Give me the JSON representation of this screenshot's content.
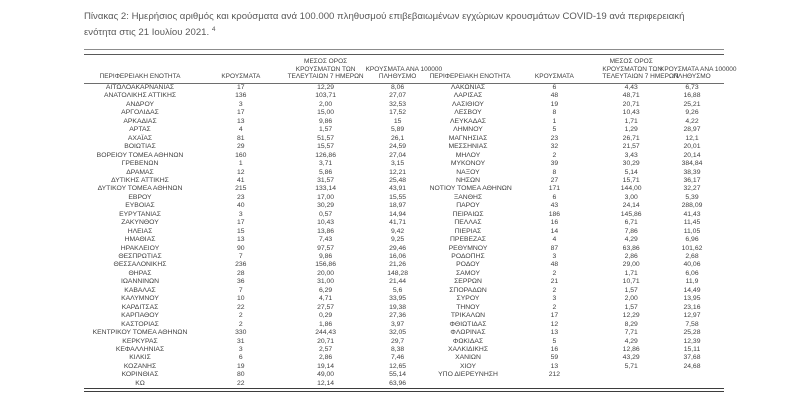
{
  "title": {
    "text": "Πίνακας 2: Ημερήσιος αριθμός και κρούσματα ανά 100.000 πληθυσμού επιβεβαιωμένων εγχώριων κρουσμάτων COVID-19 ανά περιφερειακή ενότητα στις 21 Ιουλίου 2021.",
    "footnote_ref": "4"
  },
  "table": {
    "headers": {
      "region": "ΠΕΡΙΦΕΡΕΙΑΚΗ ΕΝΟΤΗΤΑ",
      "cases": "ΚΡΟΥΣΜΑΤΑ",
      "avg_line1": "ΜΕΣΟΣ ΟΡΟΣ",
      "avg_line2": "ΚΡΟΥΣΜΑΤΩΝ ΤΩΝ",
      "avg_line3": "ΤΕΛΕΥΤΑΙΩΝ 7 ΗΜΕΡΩΝ",
      "per100k_line1": "ΚΡΟΥΣΜΑΤΑ ΑΝΑ 100000",
      "per100k_line2": "ΠΛΗΘΥΣΜΟ"
    },
    "left_rows": [
      [
        "ΑΙΤΩΛΟΑΚΑΡΝΑΝΙΑΣ",
        "17",
        "12,29",
        "8,06"
      ],
      [
        "ΑΝΑΤΟΛΙΚΗΣ ΑΤΤΙΚΗΣ",
        "136",
        "103,71",
        "27,07"
      ],
      [
        "ΑΝΔΡΟΥ",
        "3",
        "2,00",
        "32,53"
      ],
      [
        "ΑΡΓΟΛΙΔΑΣ",
        "17",
        "15,00",
        "17,52"
      ],
      [
        "ΑΡΚΑΔΙΑΣ",
        "13",
        "9,86",
        "15"
      ],
      [
        "ΑΡΤΑΣ",
        "4",
        "1,57",
        "5,89"
      ],
      [
        "ΑΧΑΪΑΣ",
        "81",
        "51,57",
        "26,1"
      ],
      [
        "ΒΟΙΩΤΙΑΣ",
        "29",
        "15,57",
        "24,59"
      ],
      [
        "ΒΟΡΕΙΟΥ ΤΟΜΕΑ ΑΘΗΝΩΝ",
        "160",
        "126,86",
        "27,04"
      ],
      [
        "ΓΡΕΒΕΝΩΝ",
        "1",
        "3,71",
        "3,15"
      ],
      [
        "ΔΡΑΜΑΣ",
        "12",
        "5,86",
        "12,21"
      ],
      [
        "ΔΥΤΙΚΗΣ ΑΤΤΙΚΗΣ",
        "41",
        "31,57",
        "25,48"
      ],
      [
        "ΔΥΤΙΚΟΥ ΤΟΜΕΑ ΑΘΗΝΩΝ",
        "215",
        "133,14",
        "43,91"
      ],
      [
        "ΕΒΡΟΥ",
        "23",
        "17,00",
        "15,55"
      ],
      [
        "ΕΥΒΟΙΑΣ",
        "40",
        "30,29",
        "18,97"
      ],
      [
        "ΕΥΡΥΤΑΝΙΑΣ",
        "3",
        "0,57",
        "14,94"
      ],
      [
        "ΖΑΚΥΝΘΟΥ",
        "17",
        "10,43",
        "41,71"
      ],
      [
        "ΗΛΕΙΑΣ",
        "15",
        "13,86",
        "9,42"
      ],
      [
        "ΗΜΑΘΙΑΣ",
        "13",
        "7,43",
        "9,25"
      ],
      [
        "ΗΡΑΚΛΕΙΟΥ",
        "90",
        "97,57",
        "29,46"
      ],
      [
        "ΘΕΣΠΡΩΤΙΑΣ",
        "7",
        "9,86",
        "16,06"
      ],
      [
        "ΘΕΣΣΑΛΟΝΙΚΗΣ",
        "236",
        "156,86",
        "21,26"
      ],
      [
        "ΘΗΡΑΣ",
        "28",
        "20,00",
        "148,28"
      ],
      [
        "ΙΩΑΝΝΙΝΩΝ",
        "36",
        "31,00",
        "21,44"
      ],
      [
        "ΚΑΒΑΛΑΣ",
        "7",
        "6,29",
        "5,6"
      ],
      [
        "ΚΑΛΥΜΝΟΥ",
        "10",
        "4,71",
        "33,95"
      ],
      [
        "ΚΑΡΔΙΤΣΑΣ",
        "22",
        "27,57",
        "19,38"
      ],
      [
        "ΚΑΡΠΑΘΟΥ",
        "2",
        "0,29",
        "27,36"
      ],
      [
        "ΚΑΣΤΟΡΙΑΣ",
        "2",
        "1,86",
        "3,97"
      ],
      [
        "ΚΕΝΤΡΙΚΟΥ ΤΟΜΕΑ ΑΘΗΝΩΝ",
        "330",
        "244,43",
        "32,05"
      ],
      [
        "ΚΕΡΚΥΡΑΣ",
        "31",
        "20,71",
        "29,7"
      ],
      [
        "ΚΕΦΑΛΛΗΝΙΑΣ",
        "3",
        "2,57",
        "8,38"
      ],
      [
        "ΚΙΛΚΙΣ",
        "6",
        "2,86",
        "7,46"
      ],
      [
        "ΚΟΖΑΝΗΣ",
        "19",
        "19,14",
        "12,65"
      ],
      [
        "ΚΟΡΙΝΘΙΑΣ",
        "80",
        "49,00",
        "55,14"
      ],
      [
        "ΚΩ",
        "22",
        "12,14",
        "63,96"
      ]
    ],
    "right_rows": [
      [
        "ΛΑΚΩΝΙΑΣ",
        "6",
        "4,43",
        "6,73"
      ],
      [
        "ΛΑΡΙΣΑΣ",
        "48",
        "48,71",
        "16,88"
      ],
      [
        "ΛΑΣΙΘΙΟΥ",
        "19",
        "20,71",
        "25,21"
      ],
      [
        "ΛΕΣΒΟΥ",
        "8",
        "10,43",
        "9,26"
      ],
      [
        "ΛΕΥΚΑΔΑΣ",
        "1",
        "1,71",
        "4,22"
      ],
      [
        "ΛΗΜΝΟΥ",
        "5",
        "1,29",
        "28,97"
      ],
      [
        "ΜΑΓΝΗΣΙΑΣ",
        "23",
        "26,71",
        "12,1"
      ],
      [
        "ΜΕΣΣΗΝΙΑΣ",
        "32",
        "21,57",
        "20,01"
      ],
      [
        "ΜΗΛΟΥ",
        "2",
        "3,43",
        "20,14"
      ],
      [
        "ΜΥΚΟΝΟΥ",
        "39",
        "30,29",
        "384,84"
      ],
      [
        "ΝΑΞΟΥ",
        "8",
        "5,14",
        "38,39"
      ],
      [
        "ΝΗΣΩΝ",
        "27",
        "15,71",
        "36,17"
      ],
      [
        "ΝΟΤΙΟΥ ΤΟΜΕΑ ΑΘΗΝΩΝ",
        "171",
        "144,00",
        "32,27"
      ],
      [
        "ΞΑΝΘΗΣ",
        "6",
        "3,00",
        "5,39"
      ],
      [
        "ΠΑΡΟΥ",
        "43",
        "24,14",
        "288,09"
      ],
      [
        "ΠΕΙΡΑΙΩΣ",
        "186",
        "145,86",
        "41,43"
      ],
      [
        "ΠΕΛΛΑΣ",
        "16",
        "6,71",
        "11,45"
      ],
      [
        "ΠΙΕΡΙΑΣ",
        "14",
        "7,86",
        "11,05"
      ],
      [
        "ΠΡΕΒΕΖΑΣ",
        "4",
        "4,29",
        "6,96"
      ],
      [
        "ΡΕΘΥΜΝΟΥ",
        "87",
        "63,86",
        "101,62"
      ],
      [
        "ΡΟΔΟΠΗΣ",
        "3",
        "2,86",
        "2,68"
      ],
      [
        "ΡΟΔΟΥ",
        "48",
        "29,00",
        "40,06"
      ],
      [
        "ΣΑΜΟΥ",
        "2",
        "1,71",
        "6,06"
      ],
      [
        "ΣΕΡΡΩΝ",
        "21",
        "10,71",
        "11,9"
      ],
      [
        "ΣΠΟΡΑΔΩΝ",
        "2",
        "1,57",
        "14,49"
      ],
      [
        "ΣΥΡΟΥ",
        "3",
        "2,00",
        "13,95"
      ],
      [
        "ΤΗΝΟΥ",
        "2",
        "1,57",
        "23,16"
      ],
      [
        "ΤΡΙΚΑΛΩΝ",
        "17",
        "12,29",
        "12,97"
      ],
      [
        "ΦΘΙΩΤΙΔΑΣ",
        "12",
        "8,29",
        "7,58"
      ],
      [
        "ΦΛΩΡΙΝΑΣ",
        "13",
        "7,71",
        "25,28"
      ],
      [
        "ΦΩΚΙΔΑΣ",
        "5",
        "4,29",
        "12,39"
      ],
      [
        "ΧΑΛΚΙΔΙΚΗΣ",
        "16",
        "12,86",
        "15,11"
      ],
      [
        "ΧΑΝΙΩΝ",
        "59",
        "43,29",
        "37,68"
      ],
      [
        "ΧΙΟΥ",
        "13",
        "5,71",
        "24,68"
      ],
      [
        "ΥΠΟ ΔΙΕΡΕΥΝΗΣΗ",
        "212",
        "",
        ""
      ],
      [
        "",
        "",
        "",
        ""
      ]
    ],
    "colors": {
      "title_text": "#595959",
      "table_text": "#404040",
      "rule": "#595959"
    }
  }
}
